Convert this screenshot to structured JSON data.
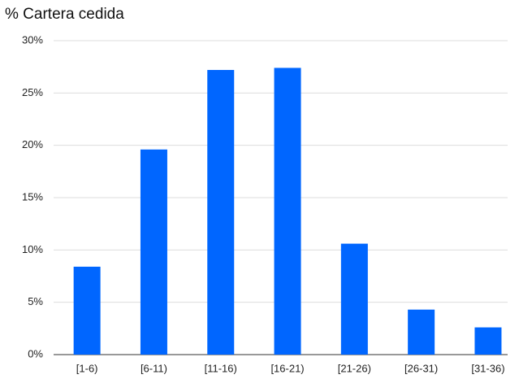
{
  "chart_data": {
    "type": "bar",
    "title": "% Cartera cedida",
    "categories": [
      "[1-6)",
      "[6-11)",
      "[11-16)",
      "[16-21)",
      "[21-26)",
      "[26-31)",
      "[31-36)"
    ],
    "values": [
      8.4,
      19.6,
      27.2,
      27.4,
      10.6,
      4.3,
      2.6
    ],
    "color": "#0066ff",
    "ylim": [
      0,
      30
    ],
    "yticks": [
      {
        "value": 0,
        "label": "0%"
      },
      {
        "value": 5,
        "label": "5%"
      },
      {
        "value": 10,
        "label": "10%"
      },
      {
        "value": 15,
        "label": "15%"
      },
      {
        "value": 20,
        "label": "20%"
      },
      {
        "value": 25,
        "label": "25%"
      },
      {
        "value": 30,
        "label": "30%"
      }
    ],
    "grid": true
  }
}
